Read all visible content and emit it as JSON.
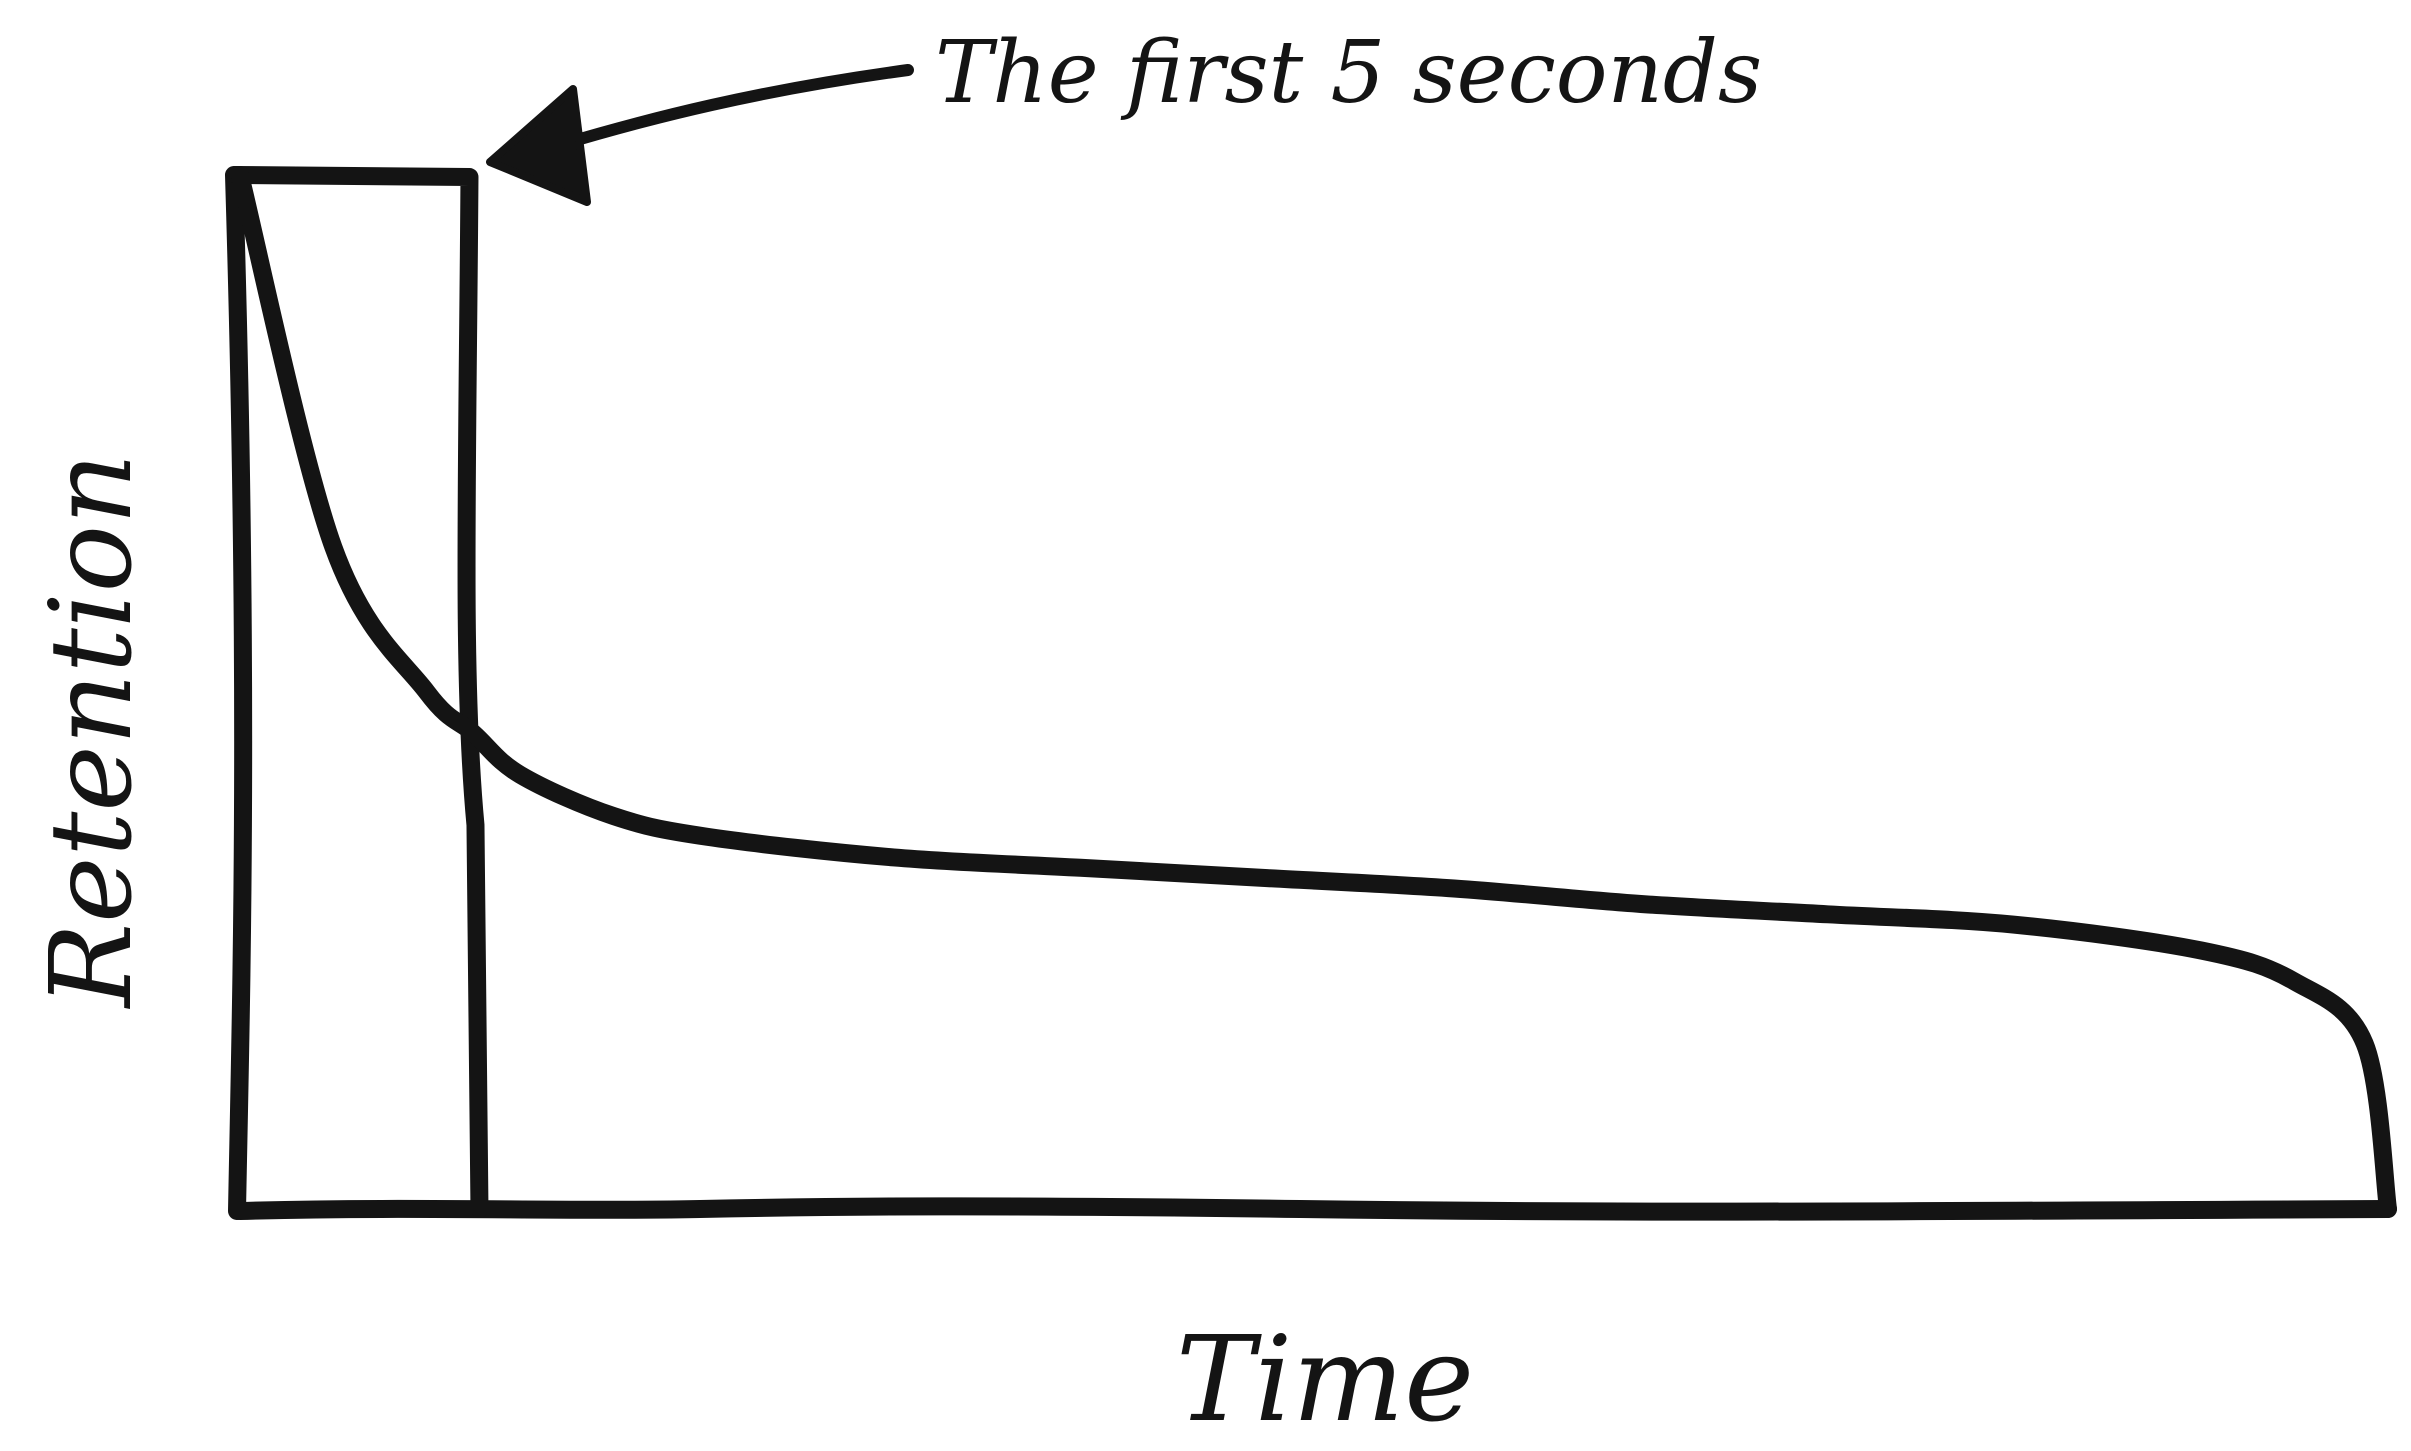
{
  "chart_data": {
    "type": "area",
    "title": "",
    "xlabel": "Time",
    "ylabel": "Retention",
    "x": [
      0,
      2,
      4,
      5,
      6,
      8,
      10,
      14,
      18,
      22,
      26,
      30,
      34,
      38,
      42,
      44,
      45.5,
      46
    ],
    "series": [
      {
        "values": [
          100,
          64,
          50,
          46,
          42,
          38,
          36,
          34,
          33,
          32,
          31,
          29.5,
          28.5,
          27.5,
          25,
          22,
          16,
          0
        ]
      }
    ],
    "highlight": {
      "x_range": [
        0,
        5
      ]
    },
    "annotations": [
      {
        "text": "The first 5 seconds",
        "target": "highlight"
      }
    ],
    "xlim": [
      0,
      46
    ],
    "ylim": [
      0,
      100
    ],
    "grid": false,
    "ink_color": "#141414"
  }
}
